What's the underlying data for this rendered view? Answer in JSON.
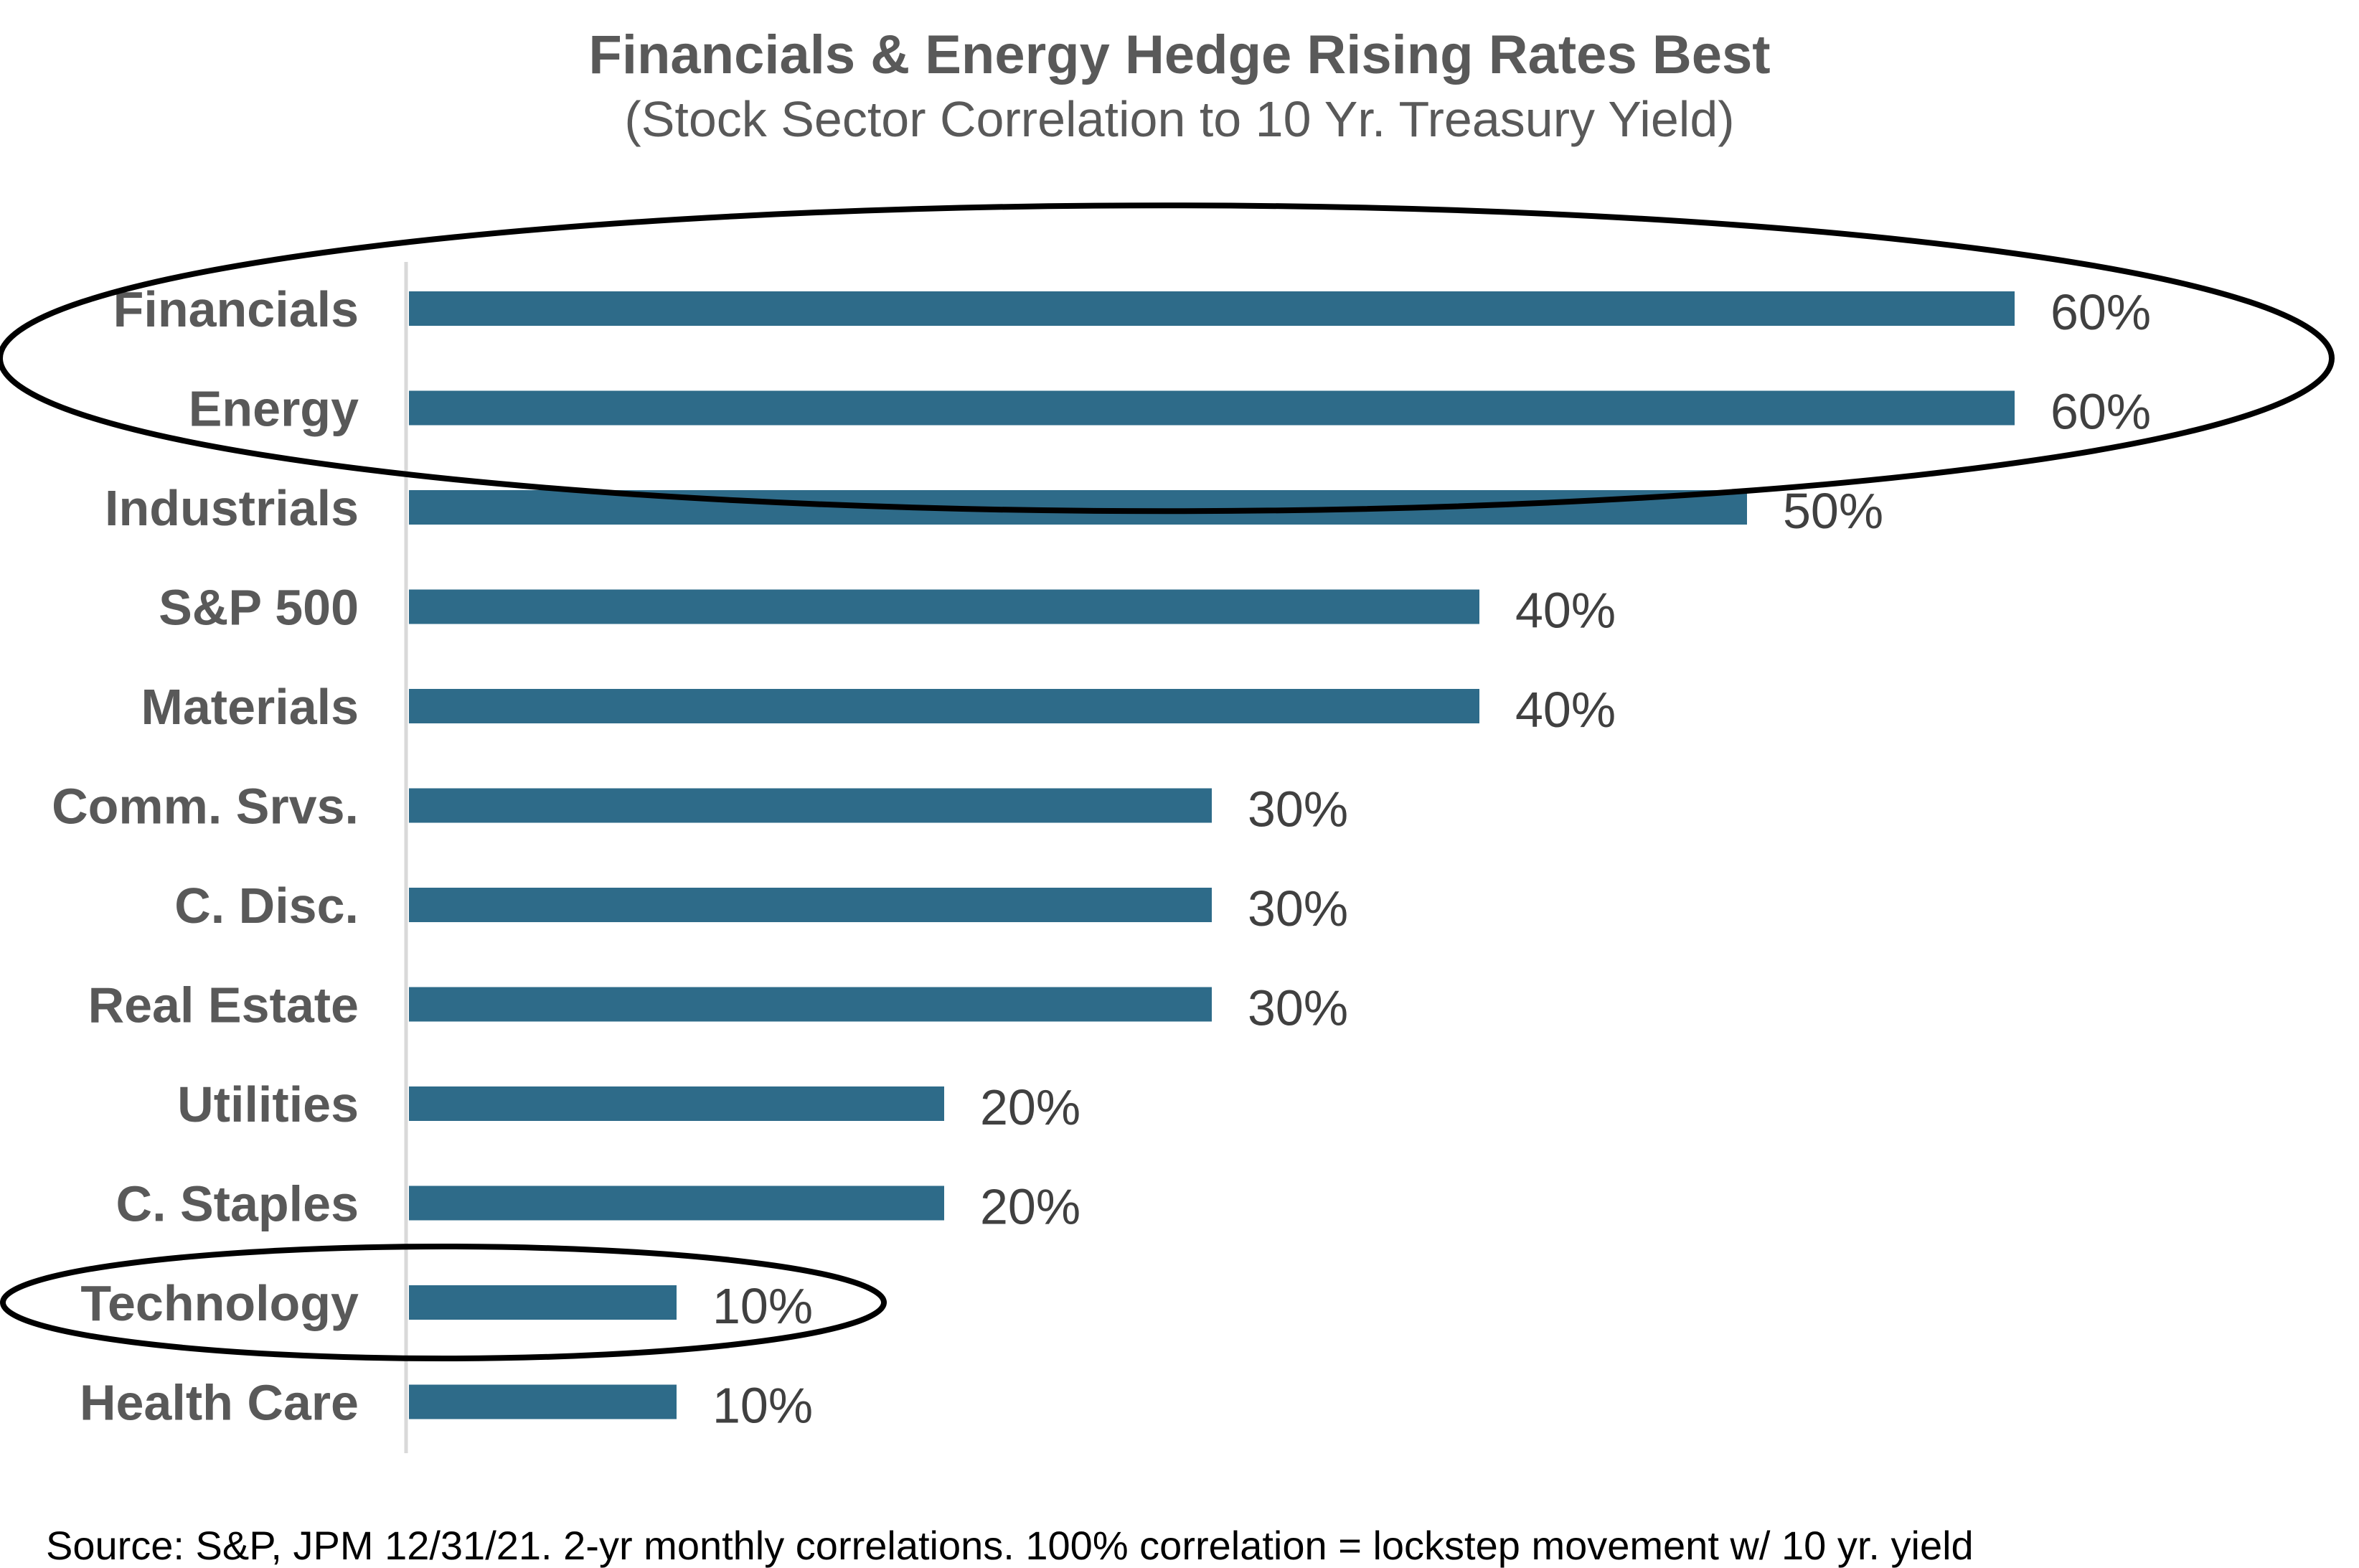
{
  "chart_data": {
    "type": "bar",
    "orientation": "horizontal",
    "title": "Financials & Energy Hedge Rising Rates Best",
    "subtitle": "(Stock Sector Correlation to 10 Yr. Treasury Yield)",
    "categories": [
      "Financials",
      "Energy",
      "Industrials",
      "S&P 500",
      "Materials",
      "Comm. Srvs.",
      "C. Disc.",
      "Real Estate",
      "Utilities",
      "C. Staples",
      "Technology",
      "Health Care"
    ],
    "values": [
      0.6,
      0.6,
      0.5,
      0.4,
      0.4,
      0.3,
      0.3,
      0.3,
      0.2,
      0.2,
      0.1,
      0.1
    ],
    "value_labels": [
      "60%",
      "60%",
      "50%",
      "40%",
      "40%",
      "30%",
      "30%",
      "30%",
      "20%",
      "20%",
      "10%",
      "10%"
    ],
    "xlim": [
      0,
      0.7
    ],
    "grid": false,
    "bar_color": "#2e6b89",
    "highlight_ellipses": [
      {
        "categories": [
          "Financials",
          "Energy"
        ],
        "color": "#000000"
      },
      {
        "categories": [
          "Technology"
        ],
        "color": "#000000"
      }
    ],
    "source": "Source: S&P, JPM 12/31/21. 2-yr monthly correlations. 100% correlation = lockstep movement w/ 10 yr. yield"
  }
}
